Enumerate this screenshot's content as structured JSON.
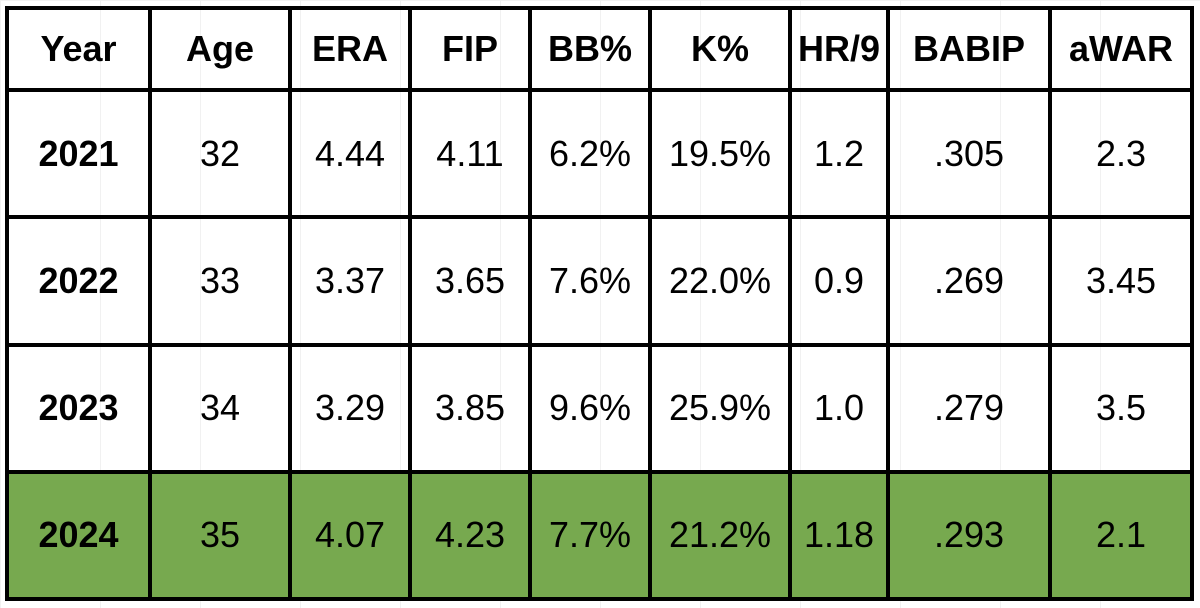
{
  "colors": {
    "highlight": "#77a94f",
    "border": "#000000",
    "background": "#ffffff"
  },
  "table": {
    "headers": [
      "Year",
      "Age",
      "ERA",
      "FIP",
      "BB%",
      "K%",
      "HR/9",
      "BABIP",
      "aWAR"
    ],
    "rows": [
      {
        "year": "2021",
        "age": "32",
        "era": "4.44",
        "fip": "4.11",
        "bb_pct": "6.2%",
        "k_pct": "19.5%",
        "hr9": "1.2",
        "babip": ".305",
        "awar": "2.3",
        "highlighted": false
      },
      {
        "year": "2022",
        "age": "33",
        "era": "3.37",
        "fip": "3.65",
        "bb_pct": "7.6%",
        "k_pct": "22.0%",
        "hr9": "0.9",
        "babip": ".269",
        "awar": "3.45",
        "highlighted": false
      },
      {
        "year": "2023",
        "age": "34",
        "era": "3.29",
        "fip": "3.85",
        "bb_pct": "9.6%",
        "k_pct": "25.9%",
        "hr9": "1.0",
        "babip": ".279",
        "awar": "3.5",
        "highlighted": false
      },
      {
        "year": "2024",
        "age": "35",
        "era": "4.07",
        "fip": "4.23",
        "bb_pct": "7.7%",
        "k_pct": "21.2%",
        "hr9": "1.18",
        "babip": ".293",
        "awar": "2.1",
        "highlighted": true
      }
    ]
  }
}
